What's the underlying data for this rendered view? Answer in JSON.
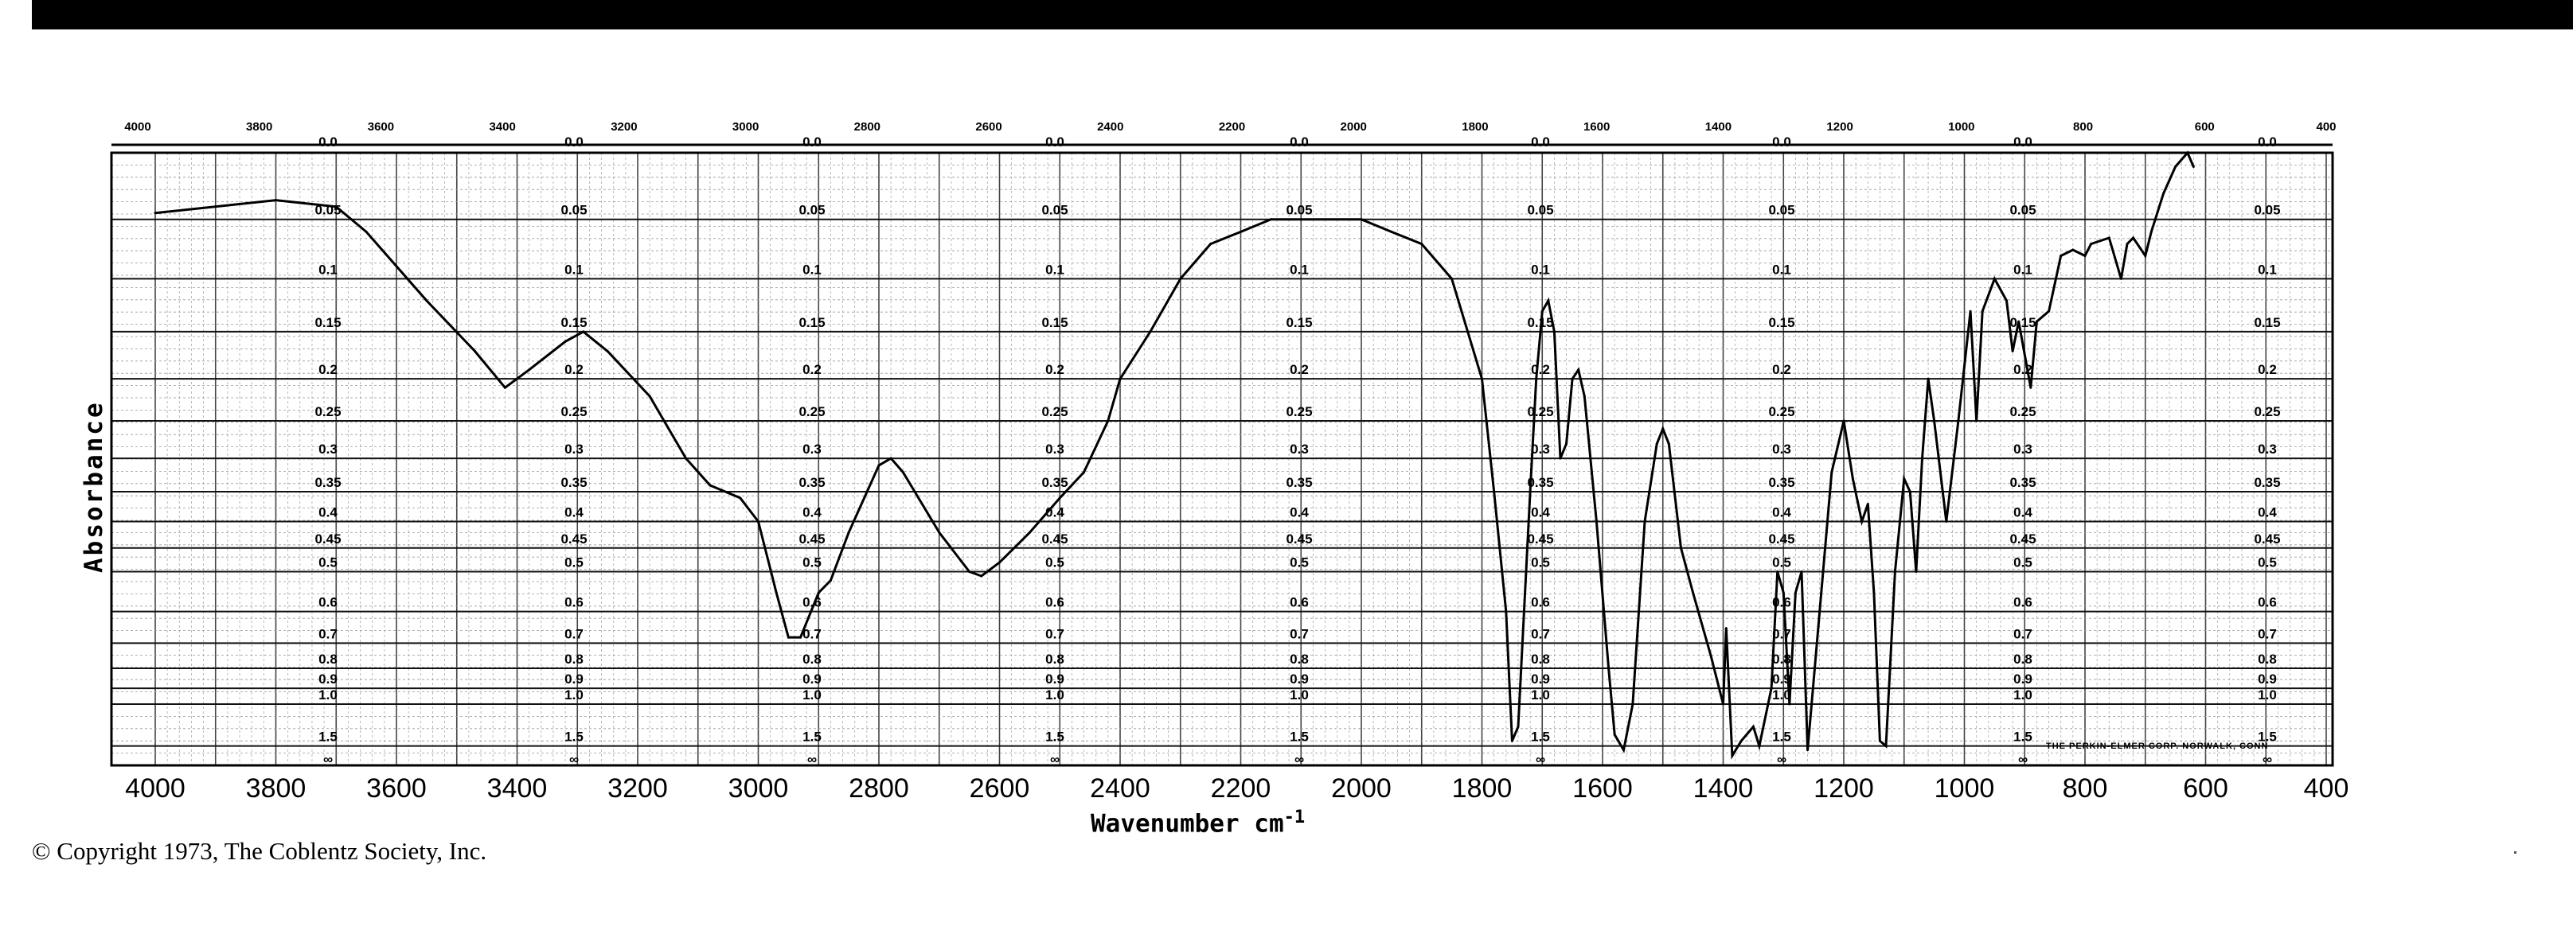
{
  "copyright": "© Copyright 1973, The Coblentz Society, Inc.",
  "maker_note": "THE PERKIN-ELMER CORP. NORWALK, CONN",
  "chart_data": {
    "type": "line",
    "title": "",
    "xlabel": "Wavenumber cm",
    "xlabel_sup": "-1",
    "ylabel": "Absorbance",
    "xlim": [
      4000,
      400
    ],
    "ylim": [
      0,
      "∞"
    ],
    "x_ticks": [
      "4000",
      "3800",
      "3600",
      "3400",
      "3200",
      "3000",
      "2800",
      "2600",
      "2400",
      "2200",
      "2000",
      "1800",
      "1600",
      "1400",
      "1200",
      "1000",
      "800",
      "600",
      "400"
    ],
    "x_tick_values": [
      4000,
      3800,
      3600,
      3400,
      3200,
      3000,
      2800,
      2600,
      2400,
      2200,
      2000,
      1800,
      1600,
      1400,
      1200,
      1000,
      800,
      600,
      400
    ],
    "top_ticks": [
      "4000",
      "3800",
      "3600",
      "3400",
      "3200",
      "3000",
      "2800",
      "2600",
      "2400",
      "2200",
      "2000",
      "1800",
      "1600",
      "1400",
      "1200",
      "1000",
      "800",
      "600",
      "400"
    ],
    "y_ticks": [
      "0.0",
      "0.05",
      "0.1",
      "0.15",
      "0.2",
      "0.25",
      "0.3",
      "0.35",
      "0.4",
      "0.45",
      "0.5",
      "0.6",
      "0.7",
      "0.8",
      "0.9",
      "1.0",
      "1.5",
      "∞"
    ],
    "y_tick_values": [
      0,
      0.05,
      0.1,
      0.15,
      0.2,
      0.25,
      0.3,
      0.35,
      0.4,
      0.45,
      0.5,
      0.6,
      0.7,
      0.8,
      0.9,
      1.0,
      1.5,
      99
    ],
    "grid": true,
    "series": [
      {
        "name": "spectrum",
        "color": "#000000",
        "x": [
          4000,
          3800,
          3700,
          3650,
          3550,
          3470,
          3420,
          3380,
          3320,
          3290,
          3250,
          3180,
          3120,
          3080,
          3030,
          3000,
          2970,
          2950,
          2930,
          2900,
          2880,
          2850,
          2800,
          2780,
          2760,
          2700,
          2650,
          2630,
          2600,
          2550,
          2500,
          2460,
          2420,
          2400,
          2350,
          2300,
          2250,
          2200,
          2150,
          2100,
          2000,
          1950,
          1900,
          1850,
          1800,
          1780,
          1760,
          1750,
          1740,
          1720,
          1710,
          1700,
          1690,
          1680,
          1670,
          1660,
          1650,
          1640,
          1630,
          1610,
          1590,
          1580,
          1565,
          1550,
          1530,
          1510,
          1500,
          1490,
          1470,
          1450,
          1420,
          1400,
          1395,
          1385,
          1370,
          1350,
          1340,
          1320,
          1310,
          1300,
          1290,
          1280,
          1270,
          1260,
          1240,
          1220,
          1200,
          1185,
          1170,
          1160,
          1150,
          1140,
          1130,
          1115,
          1100,
          1090,
          1080,
          1070,
          1060,
          1050,
          1030,
          1010,
          990,
          980,
          970,
          950,
          930,
          920,
          910,
          890,
          880,
          860,
          840,
          820,
          800,
          790,
          760,
          740,
          730,
          720,
          700,
          690,
          670,
          650,
          630,
          620
        ],
        "y": [
          0.045,
          0.035,
          0.04,
          0.06,
          0.12,
          0.17,
          0.21,
          0.19,
          0.16,
          0.15,
          0.17,
          0.22,
          0.3,
          0.34,
          0.36,
          0.4,
          0.55,
          0.68,
          0.68,
          0.55,
          0.52,
          0.42,
          0.31,
          0.3,
          0.32,
          0.42,
          0.5,
          0.51,
          0.48,
          0.42,
          0.36,
          0.32,
          0.25,
          0.2,
          0.15,
          0.1,
          0.07,
          0.06,
          0.05,
          0.05,
          0.05,
          0.06,
          0.07,
          0.1,
          0.2,
          0.35,
          0.6,
          1.4,
          1.2,
          0.35,
          0.2,
          0.13,
          0.12,
          0.15,
          0.3,
          0.28,
          0.2,
          0.19,
          0.22,
          0.4,
          0.8,
          1.3,
          1.6,
          1.0,
          0.4,
          0.28,
          0.26,
          0.28,
          0.45,
          0.55,
          0.75,
          1.0,
          0.65,
          1.8,
          1.4,
          1.2,
          1.5,
          0.9,
          0.5,
          0.55,
          1.0,
          0.55,
          0.5,
          1.6,
          0.6,
          0.32,
          0.25,
          0.33,
          0.4,
          0.37,
          0.55,
          1.4,
          1.5,
          0.5,
          0.33,
          0.35,
          0.5,
          0.3,
          0.2,
          0.25,
          0.4,
          0.25,
          0.13,
          0.25,
          0.13,
          0.1,
          0.12,
          0.17,
          0.14,
          0.21,
          0.14,
          0.13,
          0.08,
          0.075,
          0.08,
          0.07,
          0.065,
          0.1,
          0.07,
          0.065,
          0.08,
          0.06,
          0.03,
          0.01,
          0.0,
          0.01
        ]
      }
    ]
  }
}
